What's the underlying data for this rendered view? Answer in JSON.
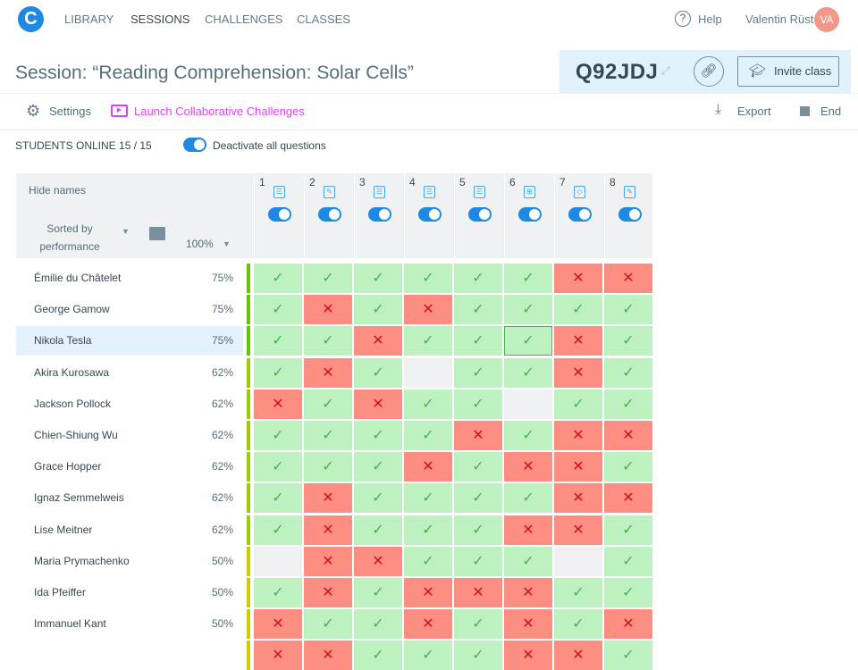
{
  "nav": {
    "logo": "C",
    "items": [
      "LIBRARY",
      "SESSIONS",
      "CHALLENGES",
      "CLASSES"
    ],
    "help": "Help",
    "user": "Valentin Rüst",
    "avatar": "VA"
  },
  "session": {
    "title": "Session: “Reading Comprehension: Solar Cells”",
    "code": "Q92JDJ",
    "invite": "Invite class"
  },
  "toolbar": {
    "settings": "Settings",
    "launch": "Launch Collaborative Challenges",
    "export": "Export",
    "end": "End"
  },
  "status": {
    "online": "STUDENTS ONLINE 15 / 15",
    "deactivate": "Deactivate all questions"
  },
  "table": {
    "hide_names": "Hide names",
    "sorted_by": "Sorted by",
    "sort_value": "performance",
    "zoom": "100%",
    "questions": [
      {
        "n": "1",
        "icon": "list-icon"
      },
      {
        "n": "2",
        "icon": "text-edit-icon"
      },
      {
        "n": "3",
        "icon": "list-icon"
      },
      {
        "n": "4",
        "icon": "list-icon"
      },
      {
        "n": "5",
        "icon": "list-icon"
      },
      {
        "n": "6",
        "icon": "grid-match-icon"
      },
      {
        "n": "7",
        "icon": "diagram-icon"
      },
      {
        "n": "8",
        "icon": "text-edit-icon"
      }
    ],
    "students": [
      {
        "name": "Émilie du Châtelet",
        "pct": "75%",
        "r": "YYYYYYNN"
      },
      {
        "name": "George Gamow",
        "pct": "75%",
        "r": "YNYNYYYY"
      },
      {
        "name": "Nikola Tesla",
        "pct": "75%",
        "r": "YYNYYYNY",
        "selected": true
      },
      {
        "name": "Akira Kurosawa",
        "pct": "62%",
        "r": "YNY-YYNY"
      },
      {
        "name": "Jackson Pollock",
        "pct": "62%",
        "r": "NYNYY-YY"
      },
      {
        "name": "Chien-Shiung Wu",
        "pct": "62%",
        "r": "YYYYNYNN"
      },
      {
        "name": "Grace Hopper",
        "pct": "62%",
        "r": "YYYNYNNY"
      },
      {
        "name": "Ignaz Semmelweis",
        "pct": "62%",
        "r": "YNYYYYNN"
      },
      {
        "name": "Lise Meitner",
        "pct": "62%",
        "r": "YNYYYNNY"
      },
      {
        "name": "Maria Prymachenko",
        "pct": "50%",
        "r": "-NNYYY-Y"
      },
      {
        "name": "Ida Pfeiffer",
        "pct": "50%",
        "r": "YNYNNNYY"
      },
      {
        "name": "Immanuel Kant",
        "pct": "50%",
        "r": "NYYNYNYN"
      },
      {
        "name": "",
        "pct": "",
        "r": "NNYYYNNY"
      }
    ]
  },
  "colors": {
    "p75": "#66c300",
    "p62": "#9ccc00",
    "p50": "#cdcc00"
  }
}
